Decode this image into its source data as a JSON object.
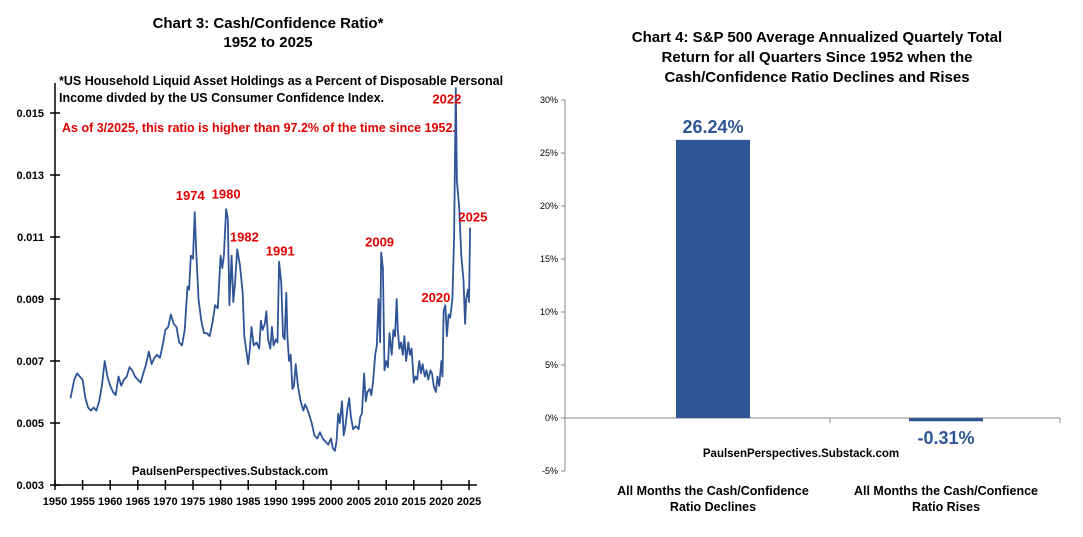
{
  "chart_data": [
    {
      "type": "line",
      "title": [
        "Chart 3: Cash/Confidence Ratio*",
        "1952 to 2025"
      ],
      "footnote": [
        "*US Household Liquid Asset Holdings as a Percent of Disposable Personal",
        "Income divded by the US Consumer Confidence Index."
      ],
      "highlight_note": "As of 3/2025, this ratio is higher than 97.2% of the time since 1952.",
      "source": "PaulsenPerspectives.Substack.com",
      "xlim": [
        1950,
        2025
      ],
      "ylim": [
        0.003,
        0.016
      ],
      "x_ticks": [
        "1950",
        "1955",
        "1960",
        "1965",
        "1970",
        "1975",
        "1980",
        "1985",
        "1990",
        "1995",
        "2000",
        "2005",
        "2010",
        "2015",
        "2020",
        "2025"
      ],
      "y_ticks": [
        "0.003",
        "0.005",
        "0.007",
        "0.009",
        "0.011",
        "0.013",
        "0.015"
      ],
      "color": "#2f5597",
      "annotations": [
        {
          "label": "1974",
          "x": 1974.5,
          "y": 0.0122
        },
        {
          "label": "1980",
          "x": 1981,
          "y": 0.01225
        },
        {
          "label": "1982",
          "x": 1984.3,
          "y": 0.01085
        },
        {
          "label": "1991",
          "x": 1990.8,
          "y": 0.0104
        },
        {
          "label": "2009",
          "x": 2008.8,
          "y": 0.0107
        },
        {
          "label": "2020",
          "x": 2019,
          "y": 0.0089
        },
        {
          "label": "2022",
          "x": 2021,
          "y": 0.0153
        },
        {
          "label": "2025",
          "x": 2025.7,
          "y": 0.0115
        }
      ],
      "x": [
        1952.8,
        1953.5,
        1954,
        1954.5,
        1955,
        1955.5,
        1956,
        1956.5,
        1957,
        1957.5,
        1958,
        1958.5,
        1959,
        1959.5,
        1960,
        1960.5,
        1961,
        1961.5,
        1962,
        1962.5,
        1963,
        1963.5,
        1964,
        1964.5,
        1965,
        1965.5,
        1966,
        1966.5,
        1967,
        1967.5,
        1968,
        1968.5,
        1969,
        1969.5,
        1970,
        1970.5,
        1971,
        1971.5,
        1972,
        1972.5,
        1973,
        1973.5,
        1974,
        1974.3,
        1974.6,
        1975,
        1975.3,
        1975.6,
        1976,
        1976.5,
        1977,
        1977.5,
        1978,
        1978.5,
        1979,
        1979.5,
        1980,
        1980.3,
        1980.6,
        1981,
        1981.3,
        1981.6,
        1982,
        1982.3,
        1982.6,
        1983,
        1983.5,
        1984,
        1984.3,
        1984.6,
        1985,
        1985.3,
        1985.6,
        1986,
        1986.5,
        1987,
        1987.3,
        1987.6,
        1988,
        1988.3,
        1988.6,
        1989,
        1989.3,
        1989.6,
        1990,
        1990.3,
        1990.6,
        1991,
        1991.3,
        1991.6,
        1991.9,
        1992.1,
        1992.4,
        1992.7,
        1993,
        1993.3,
        1993.6,
        1994,
        1994.5,
        1995,
        1995.3,
        1995.6,
        1996,
        1996.5,
        1997,
        1997.5,
        1998,
        1998.5,
        1999,
        1999.5,
        2000,
        2000.3,
        2000.7,
        2001,
        2001.3,
        2001.6,
        2002,
        2002.3,
        2002.6,
        2003,
        2003.3,
        2003.6,
        2004,
        2004.5,
        2005,
        2005.3,
        2005.6,
        2006,
        2006.3,
        2006.6,
        2007,
        2007.3,
        2007.6,
        2008,
        2008.3,
        2008.6,
        2008.9,
        2009.1,
        2009.4,
        2009.7,
        2010,
        2010.3,
        2010.6,
        2011,
        2011.3,
        2011.6,
        2011.9,
        2012.1,
        2012.4,
        2012.7,
        2013,
        2013.3,
        2013.6,
        2014,
        2014.3,
        2014.6,
        2015,
        2015.3,
        2015.6,
        2016,
        2016.3,
        2016.6,
        2017,
        2017.3,
        2017.6,
        2018,
        2018.3,
        2018.6,
        2019,
        2019.3,
        2019.6,
        2020,
        2020.2,
        2020.4,
        2020.7,
        2021,
        2021.3,
        2021.6,
        2022,
        2022.3,
        2022.6,
        2022.8,
        2023.2,
        2023.6,
        2024,
        2024.3,
        2024.5,
        2024.8,
        2025,
        2025.2
      ],
      "y": [
        0.0058,
        0.0064,
        0.0066,
        0.0065,
        0.0064,
        0.0058,
        0.0055,
        0.0054,
        0.0055,
        0.0054,
        0.0057,
        0.0062,
        0.007,
        0.0065,
        0.0062,
        0.006,
        0.0059,
        0.0065,
        0.0062,
        0.0064,
        0.0065,
        0.0068,
        0.0067,
        0.0065,
        0.0064,
        0.0063,
        0.0066,
        0.0069,
        0.0073,
        0.0069,
        0.0071,
        0.0072,
        0.0071,
        0.0075,
        0.008,
        0.0081,
        0.0085,
        0.0082,
        0.0081,
        0.0076,
        0.0075,
        0.008,
        0.0094,
        0.0093,
        0.0104,
        0.0103,
        0.0118,
        0.0105,
        0.009,
        0.0083,
        0.0079,
        0.0079,
        0.0078,
        0.0082,
        0.0088,
        0.0087,
        0.0104,
        0.01,
        0.0104,
        0.0119,
        0.0116,
        0.0088,
        0.0104,
        0.0089,
        0.0095,
        0.0106,
        0.0101,
        0.0092,
        0.0078,
        0.0074,
        0.0069,
        0.0074,
        0.0081,
        0.0075,
        0.0076,
        0.0074,
        0.0083,
        0.008,
        0.0082,
        0.0086,
        0.0077,
        0.0074,
        0.0081,
        0.0075,
        0.0077,
        0.0076,
        0.0102,
        0.0095,
        0.0078,
        0.0077,
        0.0092,
        0.0078,
        0.007,
        0.0072,
        0.0061,
        0.0062,
        0.0069,
        0.0062,
        0.0057,
        0.0054,
        0.0056,
        0.0055,
        0.0053,
        0.005,
        0.0046,
        0.0045,
        0.0047,
        0.0045,
        0.0044,
        0.0043,
        0.0045,
        0.0042,
        0.0041,
        0.0044,
        0.0053,
        0.005,
        0.0057,
        0.0046,
        0.0049,
        0.0055,
        0.0058,
        0.0052,
        0.0048,
        0.0049,
        0.0048,
        0.0052,
        0.0053,
        0.0066,
        0.0057,
        0.006,
        0.0061,
        0.0059,
        0.0063,
        0.0072,
        0.0075,
        0.009,
        0.0076,
        0.0105,
        0.01,
        0.0067,
        0.007,
        0.0068,
        0.0079,
        0.0072,
        0.008,
        0.0078,
        0.009,
        0.008,
        0.0074,
        0.0076,
        0.0072,
        0.0078,
        0.007,
        0.0076,
        0.0072,
        0.0074,
        0.0063,
        0.0065,
        0.0064,
        0.007,
        0.0066,
        0.0069,
        0.0065,
        0.0067,
        0.0064,
        0.0067,
        0.0066,
        0.0062,
        0.006,
        0.0065,
        0.0062,
        0.007,
        0.0065,
        0.0086,
        0.0088,
        0.0078,
        0.0085,
        0.0084,
        0.009,
        0.011,
        0.0158,
        0.0128,
        0.012,
        0.0104,
        0.0096,
        0.0082,
        0.009,
        0.0093,
        0.0089,
        0.0113
      ]
    },
    {
      "type": "bar",
      "title": [
        "Chart 4: S&P 500 Average Annualized Quartely Total",
        "Return for all Quarters Since 1952 when the",
        "Cash/Confidence Ratio Declines and Rises"
      ],
      "source": "PaulsenPerspectives.Substack.com",
      "categories": [
        [
          "All Months the Cash/Confidence",
          "Ratio Declines"
        ],
        [
          "All Months the Cash/Confience",
          "Ratio Rises"
        ]
      ],
      "values": [
        26.24,
        -0.31
      ],
      "data_labels": [
        "26.24%",
        "-0.31%"
      ],
      "ylim": [
        -5,
        30
      ],
      "y_ticks": [
        "-5%",
        "0%",
        "5%",
        "10%",
        "15%",
        "20%",
        "25%",
        "30%"
      ],
      "color": "#2f5597"
    }
  ]
}
